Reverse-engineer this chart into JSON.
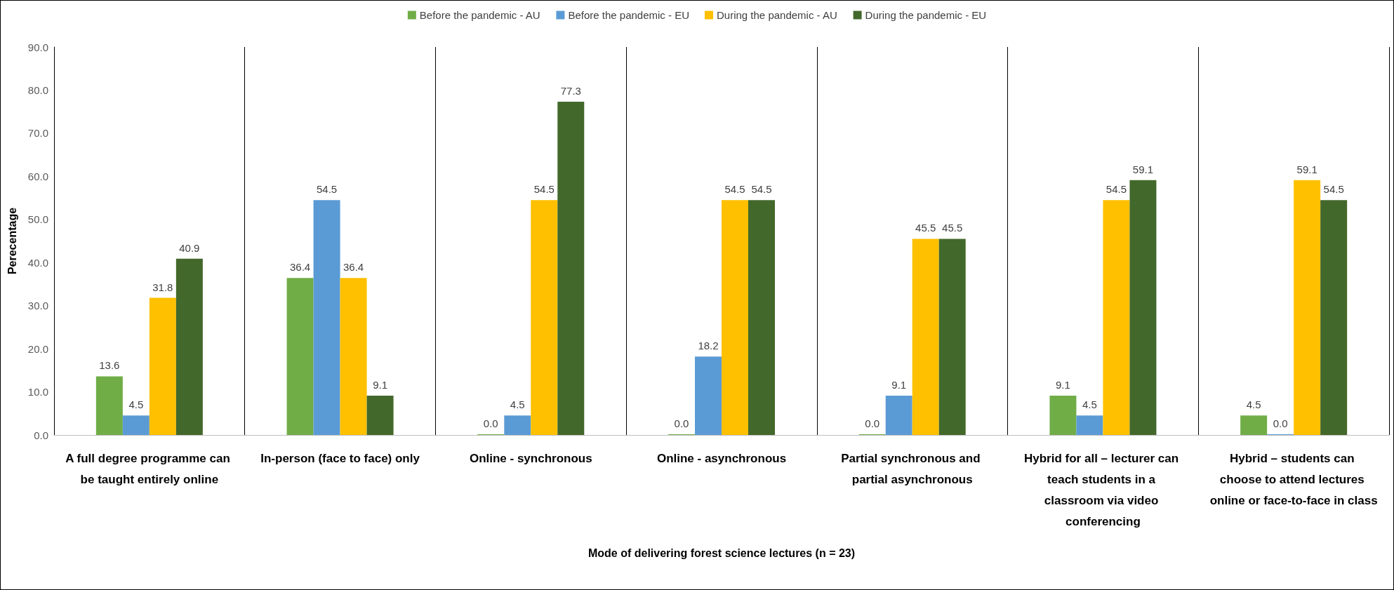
{
  "chart_data": {
    "type": "bar",
    "xlabel": "Mode of delivering forest science lectures (n = 23)",
    "ylabel": "Perecentage",
    "categories": [
      "A full degree programme can be taught entirely online",
      "In-person (face to face) only",
      "Online - synchronous",
      "Online - asynchronous",
      "Partial synchronous and partial asynchronous",
      "Hybrid for all – lecturer can teach students in a classroom via video conferencing",
      "Hybrid – students can choose to attend lectures online or face-to-face in class"
    ],
    "series": [
      {
        "name": "Before the pandemic - AU",
        "color": "#70ad47",
        "values": [
          13.6,
          36.4,
          0.0,
          0.0,
          0.0,
          9.1,
          4.5
        ],
        "value_labels": [
          "13.6",
          "36.4",
          "0.0",
          "0.0",
          "0.0",
          "9.1",
          "4.5"
        ]
      },
      {
        "name": "Before the pandemic - EU",
        "color": "#5b9bd5",
        "values": [
          4.5,
          54.5,
          4.5,
          18.2,
          9.1,
          4.5,
          0.0
        ],
        "value_labels": [
          "4.5",
          "54.5",
          "4.5",
          "18.2",
          "9.1",
          "4.5",
          "0.0"
        ]
      },
      {
        "name": "During the pandemic - AU",
        "color": "#ffc000",
        "values": [
          31.8,
          36.4,
          54.5,
          54.5,
          45.5,
          54.5,
          59.1
        ],
        "value_labels": [
          "31.8",
          "36.4",
          "54.5",
          "54.5",
          "45.5",
          "54.5",
          "59.1"
        ]
      },
      {
        "name": "During the pandemic - EU",
        "color": "#43682b",
        "values": [
          40.9,
          9.1,
          77.3,
          54.5,
          45.5,
          59.1,
          54.5
        ],
        "value_labels": [
          "40.9",
          "9.1",
          "77.3",
          "54.5",
          "45.5",
          "59.1",
          "54.5"
        ]
      }
    ],
    "ylim": [
      0,
      90
    ],
    "yticks": [
      {
        "value": 0,
        "label": "0.0"
      },
      {
        "value": 10,
        "label": "10.0"
      },
      {
        "value": 20,
        "label": "20.0"
      },
      {
        "value": 30,
        "label": "30.0"
      },
      {
        "value": 40,
        "label": "40.0"
      },
      {
        "value": 50,
        "label": "50.0"
      },
      {
        "value": 60,
        "label": "60.0"
      },
      {
        "value": 70,
        "label": "70.0"
      },
      {
        "value": 80,
        "label": "80.0"
      },
      {
        "value": 90,
        "label": "90.0"
      }
    ],
    "grid": "x",
    "legend": "top"
  }
}
